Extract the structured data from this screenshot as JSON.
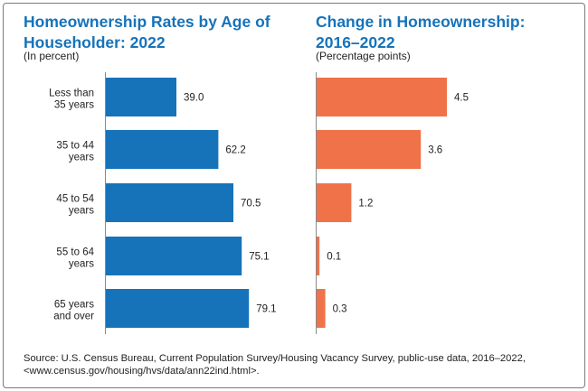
{
  "colors": {
    "left_bar": "#1673ba",
    "right_bar": "#f07249",
    "title": "#1673ba",
    "axis": "#8a8a8a"
  },
  "chart_data": [
    {
      "type": "bar",
      "orientation": "horizontal",
      "title": "Homeownership Rates by Age of Householder: 2022",
      "subtitle": "(In percent)",
      "categories": [
        "Less than 35 years",
        "35 to 44 years",
        "45 to 54 years",
        "55 to 64 years",
        "65 years and over"
      ],
      "values": [
        39.0,
        62.2,
        70.5,
        75.1,
        79.1
      ],
      "value_labels": [
        "39.0",
        "62.2",
        "70.5",
        "75.1",
        "79.1"
      ],
      "xlim": [
        0,
        100
      ],
      "grid": false,
      "legend": "none"
    },
    {
      "type": "bar",
      "orientation": "horizontal",
      "title": "Change in Homeownership: 2016–2022",
      "subtitle": "(Percentage points)",
      "categories": [
        "Less than 35 years",
        "35 to 44 years",
        "45 to 54 years",
        "55 to 64 years",
        "65 years and over"
      ],
      "values": [
        4.5,
        3.6,
        1.2,
        0.1,
        0.3
      ],
      "value_labels": [
        "4.5",
        "3.6",
        "1.2",
        "0.1",
        "0.3"
      ],
      "xlim": [
        0,
        7
      ],
      "grid": false,
      "legend": "none"
    }
  ],
  "category_label_lines": [
    [
      "Less than",
      "35 years"
    ],
    [
      "35 to 44",
      "years"
    ],
    [
      "45 to 54",
      "years"
    ],
    [
      "55 to 64",
      "years"
    ],
    [
      "65 years",
      "and over"
    ]
  ],
  "source": {
    "line1": "Source: U.S. Census Bureau, Current Population Survey/Housing Vacancy Survey, public-use data, 2016–2022,",
    "line2": "<www.census.gov/housing/hvs/data/ann22ind.html>."
  }
}
